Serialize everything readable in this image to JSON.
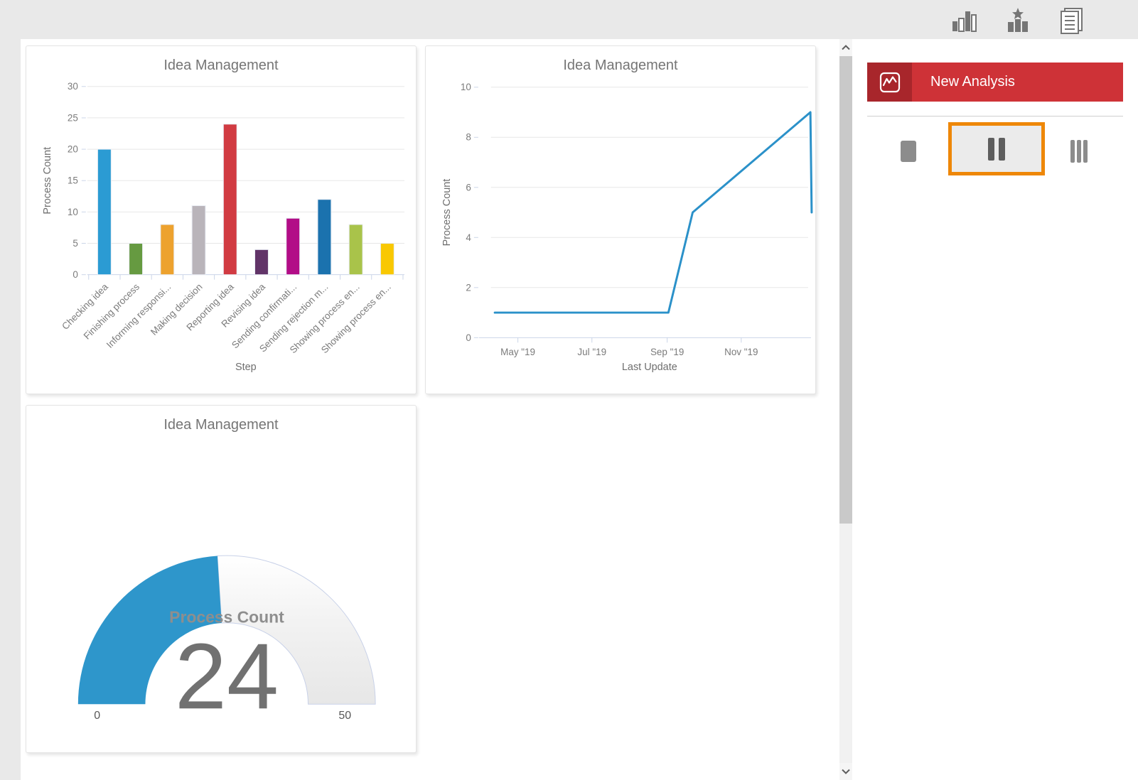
{
  "toolbar": {
    "icons": [
      {
        "name": "bar-chart"
      },
      {
        "name": "ranking"
      },
      {
        "name": "report"
      }
    ]
  },
  "sidebar": {
    "new_analysis_label": "New Analysis",
    "button_red": "#ce3237",
    "button_red_dark": "#a8262b",
    "selection_orange": "#ee8708",
    "layouts": [
      {
        "name": "one-column",
        "selected": false
      },
      {
        "name": "two-columns",
        "selected": true
      },
      {
        "name": "three-columns",
        "selected": false
      }
    ]
  },
  "chart_data": [
    {
      "type": "bar",
      "title": "Idea Management",
      "xlabel": "Step",
      "ylabel": "Process Count",
      "ylim": [
        0,
        30
      ],
      "yticks": [
        0,
        5,
        10,
        15,
        20,
        25,
        30
      ],
      "grid": true,
      "legend": false,
      "categories": [
        "Checking idea",
        "Finishing process",
        "Informing responsi...",
        "Making decision",
        "Reporting idea",
        "Revising idea",
        "Sending confirmati...",
        "Sending rejection m...",
        "Showing process en...",
        "Showing process en..."
      ],
      "values": [
        20,
        5,
        8,
        11,
        24,
        4,
        9,
        12,
        8,
        5
      ],
      "colors": [
        "#2b9bd3",
        "#669a41",
        "#eda22e",
        "#b9b4ba",
        "#d13b42",
        "#613468",
        "#b20d87",
        "#1b72ae",
        "#a9c34a",
        "#f9c802"
      ]
    },
    {
      "type": "line",
      "title": "Idea Management",
      "xlabel": "Last Update",
      "ylabel": "Process Count",
      "ylim": [
        0,
        10
      ],
      "yticks": [
        0,
        2,
        4,
        6,
        8,
        10
      ],
      "grid": true,
      "legend": false,
      "color": "#2b91c9",
      "xticks": [
        {
          "date": "2019-05-01",
          "label": "May \"19"
        },
        {
          "date": "2019-07-01",
          "label": "Jul \"19"
        },
        {
          "date": "2019-09-01",
          "label": "Sep \"19"
        },
        {
          "date": "2019-11-01",
          "label": "Nov \"19"
        }
      ],
      "points": [
        {
          "x": "2019-04-12",
          "y": 1
        },
        {
          "x": "2019-09-02",
          "y": 1
        },
        {
          "x": "2019-09-22",
          "y": 5
        },
        {
          "x": "2019-12-28",
          "y": 9
        },
        {
          "x": "2019-12-29",
          "y": 5
        }
      ]
    },
    {
      "type": "gauge",
      "title": "Idea Management",
      "label": "Process Count",
      "value": 24,
      "min": 0,
      "max": 50,
      "color": "#2e96cb"
    }
  ]
}
